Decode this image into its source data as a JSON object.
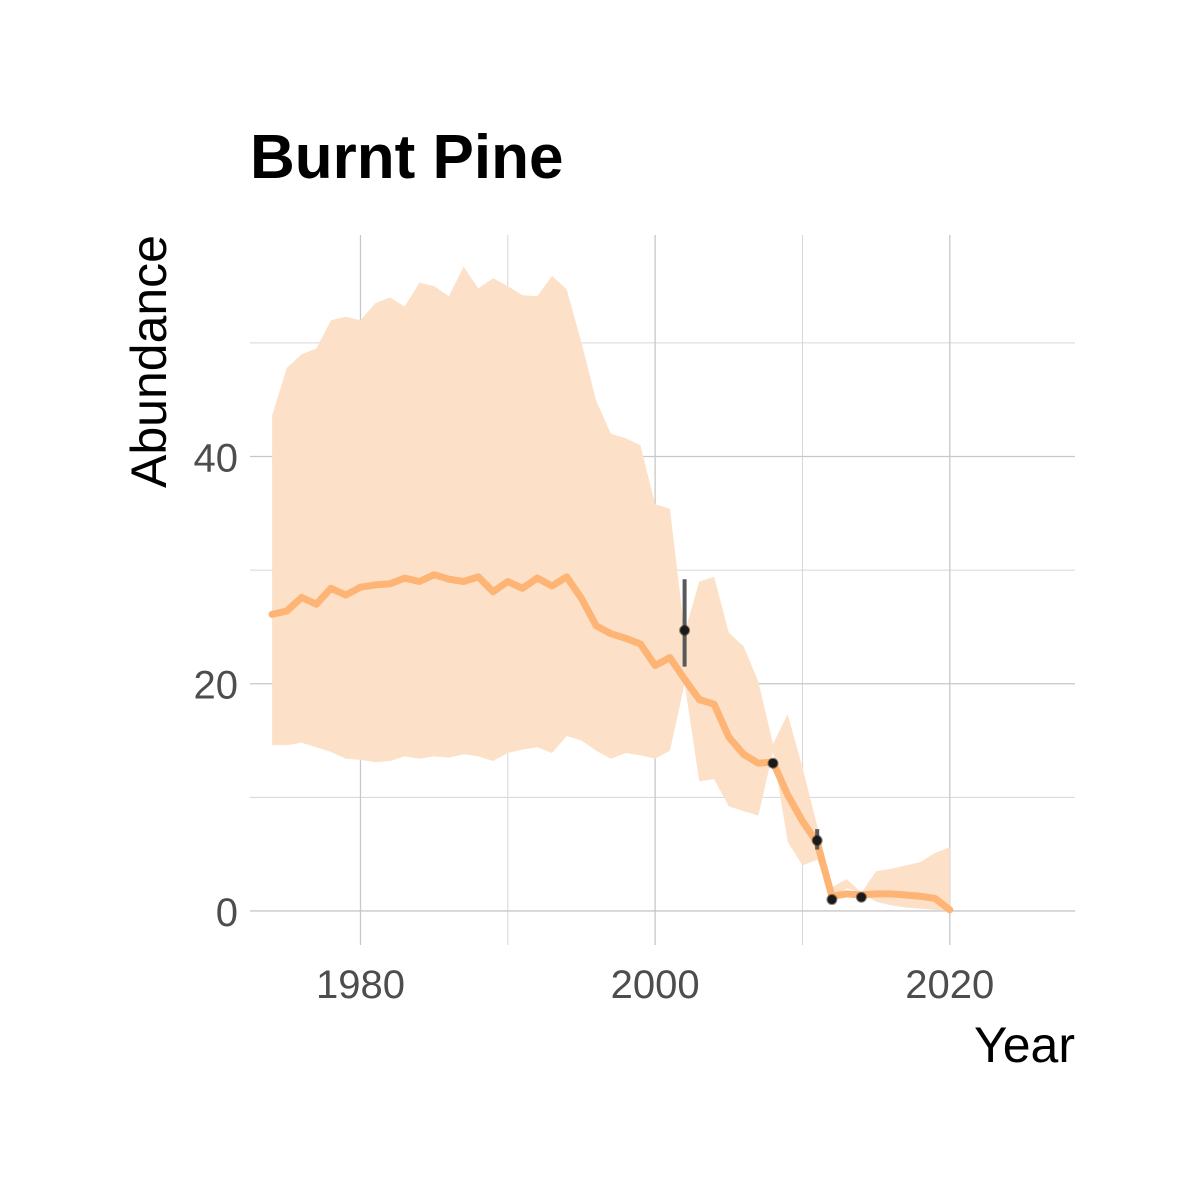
{
  "chart_data": {
    "type": "line",
    "title": "Burnt Pine",
    "xlabel": "Year",
    "ylabel": "Abundance",
    "xlim": [
      1972.5,
      2028.5
    ],
    "ylim": [
      -3,
      59.5
    ],
    "x_ticks": [
      1980,
      2000,
      2020
    ],
    "x_minor_ticks": [
      1990,
      2010
    ],
    "y_ticks": [
      0,
      20,
      40
    ],
    "y_minor_ticks": [
      10,
      30,
      50
    ],
    "grid": true,
    "legend": "none",
    "colors": {
      "line": "#fdb474",
      "band": "#fce0c7",
      "points": "#1a1a1a",
      "errorbars": "#595959"
    },
    "series": [
      {
        "x": [
          1974,
          1975,
          1976,
          1977,
          1978,
          1979,
          1980,
          1981,
          1982,
          1983,
          1984,
          1985,
          1986,
          1987,
          1988,
          1989,
          1990,
          1991,
          1992,
          1993,
          1994,
          1995,
          1996,
          1997,
          1998,
          1999,
          2000,
          2001,
          2002,
          2003,
          2004,
          2005,
          2006,
          2007,
          2008,
          2009,
          2010,
          2011,
          2012,
          2013,
          2014,
          2015,
          2016,
          2017,
          2018,
          2019,
          2020
        ],
        "y": [
          26.1,
          26.4,
          27.6,
          27.0,
          28.4,
          27.8,
          28.5,
          28.7,
          28.8,
          29.3,
          29.0,
          29.6,
          29.2,
          29.0,
          29.4,
          28.1,
          29.0,
          28.4,
          29.3,
          28.6,
          29.4,
          27.5,
          25.1,
          24.4,
          24.0,
          23.5,
          21.6,
          22.3,
          20.4,
          18.6,
          18.2,
          15.3,
          13.8,
          13.0,
          13.1,
          10.2,
          7.9,
          6.0,
          1.3,
          1.5,
          1.4,
          1.5,
          1.5,
          1.4,
          1.3,
          1.1,
          0.1
        ],
        "lower": [
          14.6,
          14.6,
          14.8,
          14.4,
          14.0,
          13.4,
          13.3,
          13.1,
          13.2,
          13.6,
          13.4,
          13.6,
          13.5,
          13.8,
          13.6,
          13.2,
          13.9,
          14.2,
          14.4,
          13.9,
          15.4,
          15.0,
          14.1,
          13.4,
          13.9,
          13.7,
          13.4,
          14.1,
          20.0,
          11.4,
          11.6,
          9.2,
          8.8,
          8.4,
          14.0,
          6.1,
          4.0,
          4.5,
          1.0,
          2.0,
          1.6,
          0.8,
          0.5,
          0.3,
          0.2,
          0.1,
          0.0
        ],
        "upper": [
          43.6,
          47.8,
          49.0,
          49.5,
          52.0,
          52.3,
          52.0,
          53.5,
          54.0,
          53.2,
          55.3,
          55.0,
          54.1,
          56.7,
          54.8,
          55.7,
          55.0,
          54.2,
          54.1,
          55.9,
          54.7,
          50.0,
          44.9,
          42.0,
          41.6,
          41.0,
          35.8,
          35.4,
          24.5,
          29.0,
          29.4,
          24.5,
          23.3,
          20.2,
          14.7,
          17.3,
          12.6,
          7.5,
          2.1,
          2.8,
          1.6,
          3.5,
          3.7,
          4.0,
          4.3,
          5.1,
          5.6
        ]
      }
    ],
    "observations": [
      {
        "x": 2002,
        "y": 24.7,
        "lower": 21.5,
        "upper": 29.2
      },
      {
        "x": 2008,
        "y": 13.0,
        "lower": 12.7,
        "upper": 13.3
      },
      {
        "x": 2011,
        "y": 6.2,
        "lower": 5.4,
        "upper": 7.2
      },
      {
        "x": 2012,
        "y": 1.0,
        "lower": 0.9,
        "upper": 1.1
      },
      {
        "x": 2014,
        "y": 1.2,
        "lower": 1.1,
        "upper": 1.3
      }
    ]
  }
}
